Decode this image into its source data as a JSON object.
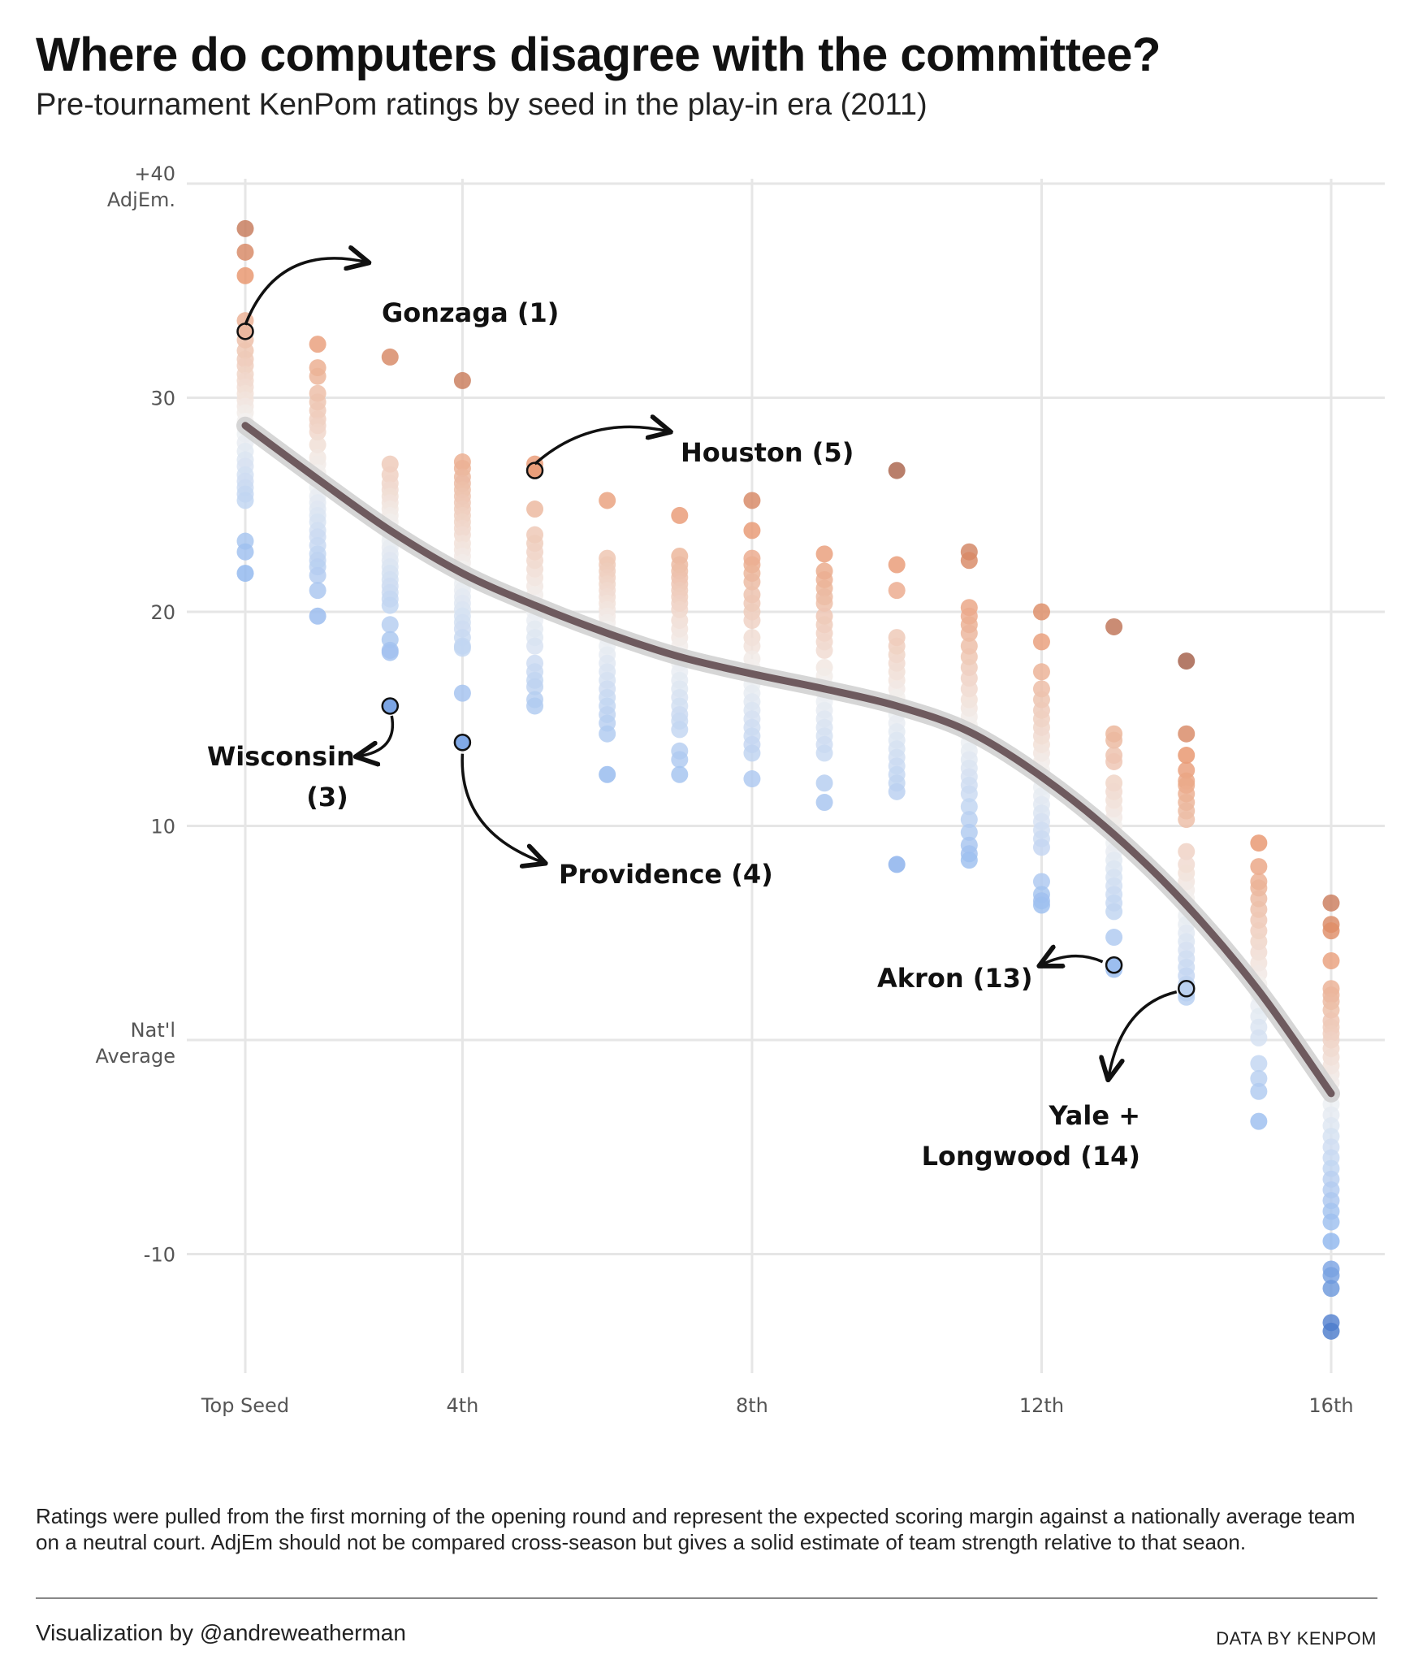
{
  "title": "Where do computers disagree with the committee?",
  "subtitle": "Pre-tournament KenPom ratings by seed in the play-in era (2011)",
  "footnote": "Ratings were pulled from the first morning of the opening round and represent the expected scoring margin against a nationally average team on a neutral court. AdjEm should not be compared cross-season but gives a solid estimate of team strength relative to that seaon.",
  "credit": "Visualization by @andreweatherman",
  "source": "DATA BY KENPOM",
  "chart_data": {
    "type": "scatter",
    "xlabel": "",
    "ylabel": "",
    "xlim": [
      0.5,
      16.5
    ],
    "ylim": [
      -16,
      41
    ],
    "x_ticks": [
      {
        "value": 1,
        "label": "Top Seed"
      },
      {
        "value": 4,
        "label": "4th"
      },
      {
        "value": 8,
        "label": "8th"
      },
      {
        "value": 12,
        "label": "12th"
      },
      {
        "value": 16,
        "label": "16th"
      }
    ],
    "y_ticks": [
      {
        "value": 40,
        "label": "+40",
        "label2": "AdjEm."
      },
      {
        "value": 30,
        "label": "30",
        "label2": ""
      },
      {
        "value": 20,
        "label": "20",
        "label2": ""
      },
      {
        "value": 10,
        "label": "10",
        "label2": ""
      },
      {
        "value": 0,
        "label": "Nat'l",
        "label2": "Average"
      },
      {
        "value": -10,
        "label": "-10",
        "label2": ""
      }
    ],
    "colors": {
      "high": "#8a4a3a",
      "mid_high": "#e8956d",
      "neutral": "#f3f3f3",
      "mid_low": "#8fb6ee",
      "low": "#3f6fc4",
      "trend": "#6e5a5e",
      "trend_band": "#cfcfcf",
      "grid": "#e6e6e6"
    },
    "points": {
      "1": [
        37.9,
        36.8,
        35.7,
        33.6,
        33.1,
        32.7,
        32.2,
        31.8,
        31.5,
        31.1,
        30.8,
        30.5,
        30.2,
        29.9,
        29.6,
        29.3,
        28.9,
        28.6,
        28.3,
        27.9,
        27.5,
        27.1,
        26.8,
        26.4,
        26.1,
        25.8,
        25.5,
        25.2,
        23.3,
        22.8,
        21.8
      ],
      "2": [
        32.5,
        31.4,
        31.0,
        30.2,
        29.8,
        29.4,
        29.0,
        28.7,
        28.4,
        27.8,
        27.2,
        26.9,
        26.5,
        26.2,
        25.8,
        25.4,
        25.1,
        24.8,
        24.5,
        24.2,
        23.8,
        23.5,
        23.1,
        22.7,
        22.4,
        22.1,
        21.7,
        21.0,
        19.8
      ],
      "3": [
        31.9,
        26.9,
        26.4,
        26.0,
        25.7,
        25.4,
        25.1,
        24.8,
        24.5,
        24.2,
        23.9,
        23.6,
        23.3,
        23.0,
        22.7,
        22.4,
        22.1,
        21.8,
        21.5,
        21.2,
        20.9,
        20.6,
        20.3,
        19.4,
        18.7,
        18.2,
        18.1,
        15.6
      ],
      "4": [
        30.8,
        27.0,
        26.7,
        26.3,
        26.0,
        25.7,
        25.4,
        25.1,
        24.8,
        24.5,
        24.2,
        23.9,
        23.6,
        23.2,
        22.9,
        22.6,
        22.3,
        22.0,
        21.6,
        21.3,
        21.0,
        20.7,
        20.4,
        20.1,
        19.8,
        19.5,
        19.2,
        18.8,
        18.4,
        18.3,
        16.2,
        13.9
      ],
      "5": [
        26.9,
        26.6,
        24.8,
        23.6,
        23.2,
        22.8,
        22.4,
        22.0,
        21.6,
        21.2,
        20.8,
        20.4,
        20.0,
        19.6,
        19.2,
        18.8,
        18.4,
        17.6,
        17.2,
        16.8,
        16.5,
        15.9,
        15.6
      ],
      "6": [
        25.2,
        22.5,
        22.2,
        21.9,
        21.6,
        21.3,
        21.0,
        20.7,
        20.4,
        20.1,
        19.8,
        19.5,
        19.2,
        18.8,
        18.4,
        18.0,
        17.6,
        17.2,
        16.8,
        16.4,
        16.0,
        15.6,
        15.2,
        14.8,
        14.3,
        12.4
      ],
      "7": [
        24.5,
        22.6,
        22.2,
        21.9,
        21.6,
        21.3,
        21.0,
        20.7,
        20.4,
        20.1,
        19.6,
        19.2,
        18.8,
        18.4,
        18.0,
        17.6,
        17.2,
        16.8,
        16.4,
        16.0,
        15.6,
        15.2,
        14.9,
        14.5,
        13.5,
        13.1,
        12.4
      ],
      "8": [
        25.2,
        23.8,
        22.5,
        22.2,
        21.8,
        21.4,
        20.8,
        20.4,
        20.0,
        19.6,
        18.8,
        18.4,
        17.8,
        17.4,
        17.0,
        16.6,
        16.2,
        15.8,
        15.4,
        15.0,
        14.6,
        14.2,
        13.8,
        13.4,
        12.2
      ],
      "9": [
        22.7,
        21.9,
        21.5,
        21.1,
        20.7,
        20.4,
        19.8,
        19.4,
        19.0,
        18.6,
        18.2,
        17.4,
        17.0,
        16.6,
        16.2,
        15.8,
        15.4,
        15.0,
        14.6,
        14.2,
        13.8,
        13.4,
        12.0,
        11.1
      ],
      "10": [
        26.6,
        22.2,
        21.0,
        18.8,
        18.4,
        18.0,
        17.6,
        17.2,
        16.8,
        16.4,
        16.0,
        15.6,
        15.2,
        14.8,
        14.4,
        14.0,
        13.6,
        13.2,
        12.8,
        12.4,
        12.0,
        11.6,
        8.2
      ],
      "11": [
        22.8,
        22.4,
        20.2,
        19.8,
        19.4,
        19.0,
        18.4,
        17.9,
        17.4,
        16.9,
        16.4,
        15.9,
        15.5,
        15.1,
        14.7,
        14.3,
        13.9,
        13.5,
        13.1,
        12.7,
        12.3,
        11.9,
        11.5,
        10.9,
        10.3,
        9.7,
        9.1,
        8.7,
        8.4
      ],
      "12": [
        20.0,
        18.6,
        17.2,
        16.4,
        15.9,
        15.4,
        15.0,
        14.6,
        14.2,
        13.8,
        13.4,
        13.0,
        12.6,
        12.2,
        11.8,
        11.4,
        11.0,
        10.6,
        10.2,
        9.8,
        9.4,
        9.0,
        7.4,
        6.8,
        6.5,
        6.3
      ],
      "13": [
        19.3,
        14.3,
        14.0,
        13.3,
        13.0,
        12.0,
        11.6,
        11.2,
        10.8,
        10.4,
        10.0,
        9.6,
        9.2,
        8.8,
        8.4,
        8.0,
        7.6,
        7.2,
        6.8,
        6.4,
        6.0,
        4.8,
        3.5,
        3.3
      ],
      "14": [
        17.7,
        14.3,
        13.3,
        12.6,
        12.1,
        11.9,
        11.5,
        11.1,
        10.7,
        10.3,
        8.8,
        8.2,
        7.8,
        7.4,
        7.0,
        6.6,
        6.2,
        5.8,
        5.4,
        5.0,
        4.6,
        4.2,
        3.8,
        3.4,
        3.0,
        2.6,
        2.4,
        2.2,
        2.0
      ],
      "15": [
        9.2,
        8.1,
        7.4,
        7.1,
        6.6,
        6.1,
        5.6,
        5.1,
        4.6,
        4.1,
        3.6,
        3.1,
        2.6,
        2.1,
        1.6,
        1.1,
        0.6,
        0.1,
        -1.1,
        -1.8,
        -2.4,
        -3.8
      ],
      "16": [
        6.4,
        5.4,
        5.1,
        3.7,
        2.4,
        2.1,
        1.8,
        1.4,
        0.9,
        0.6,
        0.3,
        0.0,
        -0.4,
        -0.8,
        -1.2,
        -1.6,
        -2.0,
        -2.5,
        -3.0,
        -3.5,
        -4.0,
        -4.5,
        -5.0,
        -5.5,
        -6.0,
        -6.5,
        -7.0,
        -7.5,
        -8.0,
        -8.5,
        -9.4,
        -10.7,
        -11.0,
        -11.6,
        -13.2,
        -13.6
      ]
    },
    "trend": [
      {
        "x": 1,
        "y": 28.7
      },
      {
        "x": 2,
        "y": 26.2
      },
      {
        "x": 3,
        "y": 23.8
      },
      {
        "x": 4,
        "y": 21.8
      },
      {
        "x": 5,
        "y": 20.3
      },
      {
        "x": 6,
        "y": 19.0
      },
      {
        "x": 7,
        "y": 17.9
      },
      {
        "x": 8,
        "y": 17.1
      },
      {
        "x": 9,
        "y": 16.4
      },
      {
        "x": 10,
        "y": 15.6
      },
      {
        "x": 11,
        "y": 14.4
      },
      {
        "x": 12,
        "y": 12.3
      },
      {
        "x": 13,
        "y": 9.6
      },
      {
        "x": 14,
        "y": 6.3
      },
      {
        "x": 15,
        "y": 2.3
      },
      {
        "x": 16,
        "y": -2.5
      }
    ],
    "annotations": [
      {
        "seed": 1,
        "value": 33.1,
        "lines": [
          "Gonzaga (1)"
        ]
      },
      {
        "seed": 5,
        "value": 26.6,
        "lines": [
          "Houston (5)"
        ]
      },
      {
        "seed": 3,
        "value": 15.6,
        "lines": [
          "Wisconsin",
          "(3)"
        ]
      },
      {
        "seed": 4,
        "value": 13.9,
        "lines": [
          "Providence (4)"
        ]
      },
      {
        "seed": 13,
        "value": 3.5,
        "lines": [
          "Akron (13)"
        ]
      },
      {
        "seed": 14,
        "value": 2.4,
        "lines": [
          "Yale +",
          "Longwood (14)"
        ]
      }
    ]
  }
}
